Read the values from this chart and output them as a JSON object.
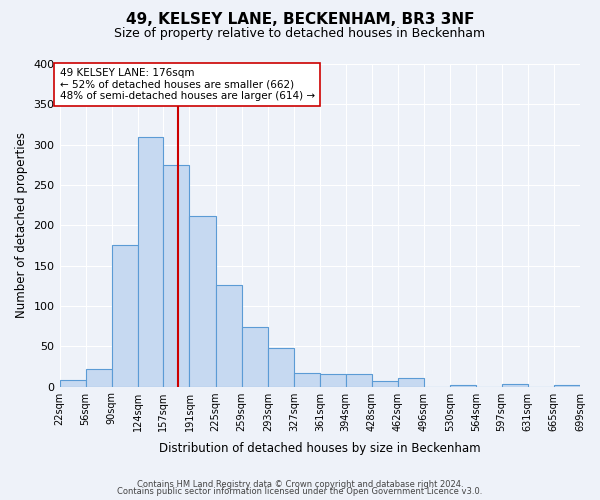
{
  "title": "49, KELSEY LANE, BECKENHAM, BR3 3NF",
  "subtitle": "Size of property relative to detached houses in Beckenham",
  "xlabel": "Distribution of detached houses by size in Beckenham",
  "ylabel": "Number of detached properties",
  "bar_color": "#c6d9f1",
  "bar_edge_color": "#5b9bd5",
  "bin_edges": [
    22,
    56,
    90,
    124,
    157,
    191,
    225,
    259,
    293,
    327,
    361,
    394,
    428,
    462,
    496,
    530,
    564,
    597,
    631,
    665,
    699
  ],
  "bin_labels": [
    "22sqm",
    "56sqm",
    "90sqm",
    "124sqm",
    "157sqm",
    "191sqm",
    "225sqm",
    "259sqm",
    "293sqm",
    "327sqm",
    "361sqm",
    "394sqm",
    "428sqm",
    "462sqm",
    "496sqm",
    "530sqm",
    "564sqm",
    "597sqm",
    "631sqm",
    "665sqm",
    "699sqm"
  ],
  "counts": [
    8,
    22,
    175,
    310,
    275,
    212,
    126,
    74,
    48,
    17,
    15,
    15,
    7,
    10,
    0,
    2,
    0,
    3,
    0,
    2
  ],
  "vline_x": 176,
  "vline_color": "#cc0000",
  "ylim": [
    0,
    400
  ],
  "yticks": [
    0,
    50,
    100,
    150,
    200,
    250,
    300,
    350,
    400
  ],
  "annotation_text": "49 KELSEY LANE: 176sqm\n← 52% of detached houses are smaller (662)\n48% of semi-detached houses are larger (614) →",
  "annotation_box_color": "#ffffff",
  "annotation_box_edge": "#cc0000",
  "footer1": "Contains HM Land Registry data © Crown copyright and database right 2024.",
  "footer2": "Contains public sector information licensed under the Open Government Licence v3.0.",
  "background_color": "#eef2f9"
}
